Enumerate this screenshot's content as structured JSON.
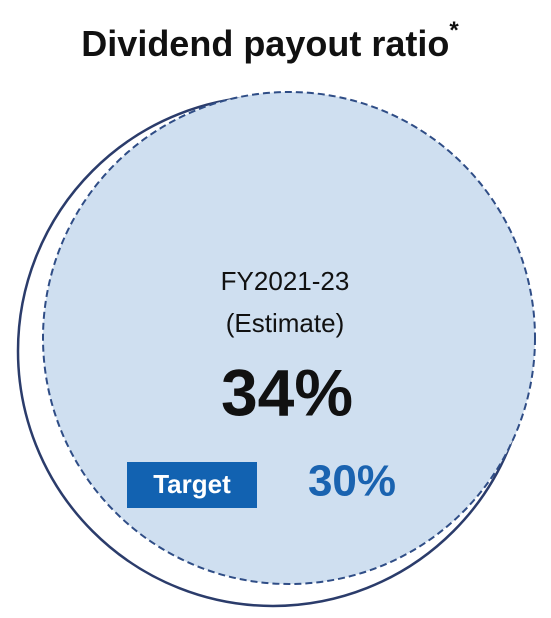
{
  "title": "Dividend payout ratio",
  "title_mark": "*",
  "period": "FY2021-23",
  "note": "(Estimate)",
  "value": "34%",
  "target": {
    "label": "Target",
    "value": "30%"
  }
}
